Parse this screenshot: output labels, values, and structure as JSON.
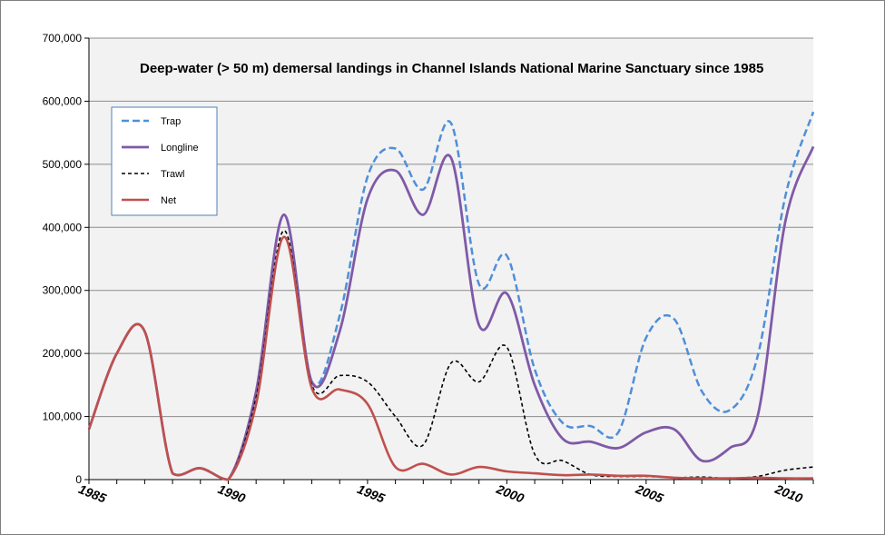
{
  "chart_data": {
    "type": "line",
    "title": "Deep-water (> 50 m) demersal landings in Channel Islands National Marine Sanctuary since 1985",
    "xlabel": "",
    "ylabel": "",
    "xlim": [
      1985,
      2011
    ],
    "ylim": [
      0,
      700000
    ],
    "yticks": [
      0,
      100000,
      200000,
      300000,
      400000,
      500000,
      600000,
      700000
    ],
    "ytick_labels": [
      "0",
      "100,000",
      "200,000",
      "300,000",
      "400,000",
      "500,000",
      "600,000",
      "700,000"
    ],
    "xticks": [
      1985,
      1990,
      1995,
      2000,
      2005,
      2010
    ],
    "xtick_labels": [
      "1985",
      "1990",
      "1995",
      "2000",
      "2005",
      "2010"
    ],
    "grid": "horizontal",
    "legend_position": "top-left",
    "x": [
      1985,
      1986,
      1987,
      1988,
      1989,
      1990,
      1991,
      1992,
      1993,
      1994,
      1995,
      1996,
      1997,
      1998,
      1999,
      2000,
      2001,
      2002,
      2003,
      2004,
      2005,
      2006,
      2007,
      2008,
      2009,
      2010,
      2011
    ],
    "series": [
      {
        "name": "Trap",
        "color": "#4f8fd9",
        "dash": "dashed",
        "values": [
          80000,
          200000,
          235000,
          10000,
          18000,
          0,
          140000,
          420000,
          155000,
          260000,
          480000,
          525000,
          460000,
          565000,
          310000,
          355000,
          175000,
          90000,
          85000,
          75000,
          225000,
          255000,
          140000,
          110000,
          195000,
          450000,
          583000
        ]
      },
      {
        "name": "Longline",
        "color": "#7f5aa8",
        "dash": "solid",
        "values": [
          80000,
          200000,
          235000,
          10000,
          18000,
          0,
          140000,
          420000,
          155000,
          235000,
          445000,
          490000,
          420000,
          510000,
          245000,
          295000,
          150000,
          65000,
          60000,
          50000,
          75000,
          80000,
          30000,
          50000,
          100000,
          410000,
          528000
        ]
      },
      {
        "name": "Trawl",
        "color": "#000000",
        "dash": "dotted",
        "values": [
          80000,
          200000,
          235000,
          10000,
          18000,
          0,
          130000,
          395000,
          150000,
          165000,
          155000,
          100000,
          55000,
          185000,
          155000,
          210000,
          40000,
          30000,
          8000,
          5000,
          5000,
          3000,
          4000,
          2000,
          5000,
          15000,
          20000
        ]
      },
      {
        "name": "Net",
        "color": "#c0504d",
        "dash": "solid",
        "values": [
          80000,
          200000,
          235000,
          10000,
          18000,
          0,
          120000,
          385000,
          145000,
          143000,
          120000,
          20000,
          25000,
          8000,
          20000,
          13000,
          10000,
          7000,
          8000,
          6000,
          6000,
          3000,
          2000,
          2000,
          3000,
          2000,
          2000
        ]
      }
    ]
  }
}
